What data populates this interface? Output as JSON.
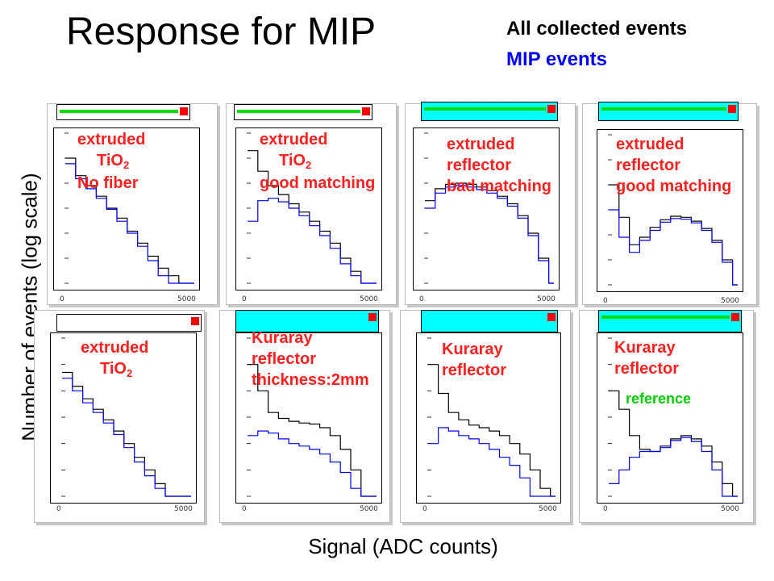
{
  "title": "Response for MIP",
  "legend": {
    "all_label": "All collected events",
    "mip_label": "MIP events"
  },
  "ylabel": "Number of events (log scale)",
  "xlabel": "Signal (ADC counts)",
  "colors": {
    "all_events": "#000000",
    "mip_events": "#0000ff",
    "annotation": "#ff2020",
    "reference": "#00cc00",
    "fiber": "#00dd00",
    "sipm": "#ff0000",
    "reflector_fill": "#00ffff"
  },
  "panels": [
    {
      "id": "p1",
      "annotation": [
        "extruded",
        "TiO2",
        "No fiber"
      ],
      "schematic": {
        "reflector": false,
        "fiber": true
      },
      "x_ticks": [
        "0",
        "5000"
      ]
    },
    {
      "id": "p2",
      "annotation": [
        "extruded",
        "TiO2",
        "good matching"
      ],
      "schematic": {
        "reflector": false,
        "fiber": true
      },
      "x_ticks": [
        "0",
        "5000"
      ]
    },
    {
      "id": "p3",
      "annotation": [
        "extruded",
        "reflector",
        "bad matching"
      ],
      "schematic": {
        "reflector": true,
        "fiber": true
      },
      "x_ticks": [
        "0",
        "5000"
      ]
    },
    {
      "id": "p4",
      "annotation": [
        "extruded",
        "reflector",
        "good matching"
      ],
      "schematic": {
        "reflector": true,
        "fiber": true
      },
      "x_ticks": [
        "0",
        "5000"
      ]
    },
    {
      "id": "p5",
      "annotation": [
        "extruded",
        "TiO2"
      ],
      "schematic": {
        "reflector": false,
        "fiber": false
      },
      "x_ticks": [
        "0",
        "5000"
      ]
    },
    {
      "id": "p6",
      "annotation": [
        "Kuraray",
        "reflector",
        "thickness:2mm"
      ],
      "schematic": {
        "reflector": true,
        "fiber": false
      },
      "x_ticks": [
        "0",
        "5000"
      ]
    },
    {
      "id": "p7",
      "annotation": [
        "Kuraray",
        "reflector"
      ],
      "schematic": {
        "reflector": true,
        "fiber": false
      },
      "x_ticks": [
        "0",
        "5000"
      ]
    },
    {
      "id": "p8",
      "annotation": [
        "Kuraray",
        "reflector"
      ],
      "extra_label": "reference",
      "schematic": {
        "reflector": true,
        "fiber": true
      },
      "x_ticks": [
        "0",
        "5000"
      ]
    }
  ],
  "chart_data": [
    {
      "type": "line",
      "panel": "p1",
      "log_y": true,
      "xlim": [
        0,
        5000
      ],
      "x": [
        0,
        400,
        800,
        1200,
        1600,
        2000,
        2400,
        2800,
        3200,
        3600,
        4000,
        4400,
        4800
      ],
      "series": [
        {
          "name": "All collected events",
          "values": [
            100000,
            20000,
            8000,
            3000,
            1000,
            400,
            120,
            40,
            12,
            4,
            2,
            1,
            1
          ]
        },
        {
          "name": "MIP events",
          "values": [
            60000,
            15000,
            6000,
            2500,
            900,
            300,
            100,
            30,
            8,
            2,
            1,
            1,
            1
          ]
        }
      ]
    },
    {
      "type": "line",
      "panel": "p2",
      "log_y": true,
      "xlim": [
        0,
        5000
      ],
      "x": [
        0,
        400,
        800,
        1200,
        1600,
        2000,
        2400,
        2800,
        3200,
        3600,
        4000,
        4400,
        4800
      ],
      "series": [
        {
          "name": "All collected events",
          "values": [
            200000,
            30000,
            8000,
            3500,
            1500,
            700,
            300,
            120,
            40,
            10,
            3,
            1,
            1
          ]
        },
        {
          "name": "MIP events",
          "values": [
            300,
            2000,
            2500,
            1800,
            1000,
            500,
            200,
            80,
            25,
            6,
            2,
            1,
            1
          ]
        }
      ]
    },
    {
      "type": "line",
      "panel": "p3",
      "log_y": true,
      "xlim": [
        0,
        5000
      ],
      "x": [
        0,
        400,
        800,
        1200,
        1600,
        2000,
        2400,
        2800,
        3200,
        3600,
        4000,
        4400,
        4800
      ],
      "series": [
        {
          "name": "All collected events",
          "values": [
            2000,
            6000,
            9000,
            10000,
            9000,
            7000,
            5000,
            3000,
            1500,
            500,
            100,
            10,
            1
          ]
        },
        {
          "name": "MIP events",
          "values": [
            1000,
            4000,
            7000,
            8000,
            7000,
            5500,
            4000,
            2500,
            1200,
            400,
            80,
            8,
            1
          ]
        }
      ]
    },
    {
      "type": "line",
      "panel": "p4",
      "log_y": true,
      "xlim": [
        0,
        5000
      ],
      "x": [
        0,
        400,
        800,
        1200,
        1600,
        2000,
        2400,
        2800,
        3200,
        3600,
        4000,
        4400,
        4800
      ],
      "series": [
        {
          "name": "All collected events",
          "values": [
            10000,
            500,
            40,
            80,
            200,
            400,
            550,
            500,
            350,
            180,
            60,
            10,
            1
          ]
        },
        {
          "name": "MIP events",
          "values": [
            1000,
            80,
            20,
            60,
            150,
            320,
            450,
            420,
            300,
            150,
            50,
            8,
            1
          ]
        }
      ]
    },
    {
      "type": "line",
      "panel": "p5",
      "log_y": true,
      "xlim": [
        0,
        5000
      ],
      "x": [
        0,
        400,
        800,
        1200,
        1600,
        2000,
        2400,
        2800,
        3200,
        3600,
        4000,
        4400,
        4800
      ],
      "series": [
        {
          "name": "All collected events",
          "values": [
            50000,
            15000,
            5000,
            2000,
            800,
            300,
            100,
            30,
            10,
            3,
            1,
            1,
            1
          ]
        },
        {
          "name": "MIP events",
          "values": [
            30000,
            10000,
            3500,
            1500,
            600,
            220,
            70,
            20,
            6,
            2,
            1,
            1,
            1
          ]
        }
      ]
    },
    {
      "type": "line",
      "panel": "p6",
      "log_y": true,
      "xlim": [
        0,
        5000
      ],
      "x": [
        0,
        400,
        800,
        1200,
        1600,
        2000,
        2400,
        2800,
        3200,
        3600,
        4000,
        4400,
        4800
      ],
      "series": [
        {
          "name": "All collected events",
          "values": [
            100000,
            10000,
            1500,
            900,
            700,
            600,
            550,
            400,
            200,
            60,
            10,
            1,
            1
          ]
        },
        {
          "name": "MIP events",
          "values": [
            200,
            300,
            250,
            150,
            100,
            80,
            60,
            40,
            20,
            8,
            2,
            1,
            1
          ]
        }
      ]
    },
    {
      "type": "line",
      "panel": "p7",
      "log_y": true,
      "xlim": [
        0,
        5000
      ],
      "x": [
        0,
        400,
        800,
        1200,
        1600,
        2000,
        2400,
        2800,
        3200,
        3600,
        4000,
        4400,
        4800
      ],
      "series": [
        {
          "name": "All collected events",
          "values": [
            100000,
            8000,
            1500,
            800,
            500,
            400,
            300,
            200,
            100,
            40,
            10,
            2,
            1
          ]
        },
        {
          "name": "MIP events",
          "values": [
            100,
            400,
            300,
            200,
            150,
            100,
            60,
            30,
            15,
            5,
            1,
            1,
            1
          ]
        }
      ]
    },
    {
      "type": "line",
      "panel": "p8",
      "log_y": true,
      "xlim": [
        0,
        5000
      ],
      "x": [
        0,
        400,
        800,
        1200,
        1600,
        2000,
        2400,
        2800,
        3200,
        3600,
        4000,
        4400,
        4800
      ],
      "series": [
        {
          "name": "All collected events",
          "values": [
            10000,
            2000,
            200,
            60,
            50,
            80,
            150,
            200,
            150,
            80,
            20,
            3,
            1
          ]
        },
        {
          "name": "MIP events",
          "values": [
            3,
            10,
            30,
            50,
            50,
            70,
            130,
            170,
            120,
            50,
            10,
            1,
            1
          ]
        }
      ]
    }
  ]
}
